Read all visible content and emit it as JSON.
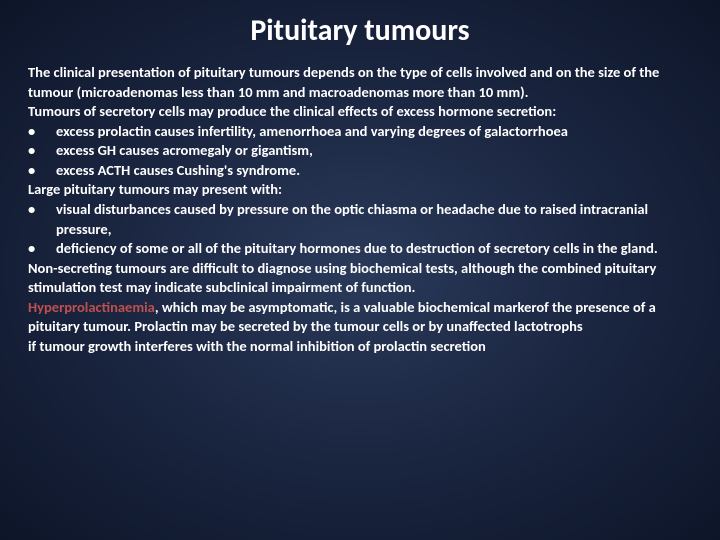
{
  "title": "Pituitary tumours",
  "intro": "The clinical presentation of pituitary tumours depends on the type of cells involved and on the size of the tumour (microadenomas less than 10 mm and macroadenomas more than 10 mm).",
  "secretory_lead": "Tumours of secretory cells may produce the clinical effects of excess hormone secretion:",
  "secretory_bullets": [
    "excess prolactin causes infertility, amenorrhoea and varying degrees of galactorrhoea",
    "excess GH causes acromegaly or gigantism,",
    "excess ACTH causes Cushing's syndrome."
  ],
  "large_lead": "Large pituitary tumours may present with:",
  "large_bullets": [
    "visual disturbances caused by pressure on the optic chiasma or headache due to raised intracranial pressure,",
    "deficiency of some or all of the pituitary hormones due to destruction of secretory cells in the gland."
  ],
  "nonsecreting": "Non-secreting tumours are difficult to diagnose using biochemical tests, although the combined pituitary stimulation test may indicate subclinical impairment of function.",
  "hyper_word": "Hyperprolactinaemia",
  "hyper_rest": ", which may be asymptomatic, is a valuable biochemical markerof the presence of a pituitary tumour. Prolactin may be secreted by the tumour cells or by unaffected lactotrophs",
  "last": "if tumour growth interferes with the normal inhibition of prolactin secretion",
  "style": {
    "background_gradient": [
      "#2a3a5a",
      "#1a2540",
      "#0d1528"
    ],
    "title_fontsize": 30,
    "body_fontsize": 14.5,
    "text_color": "#ffffff",
    "hyper_color": "#c0504d",
    "font_family": "Calibri",
    "font_weight_body": "bold"
  }
}
